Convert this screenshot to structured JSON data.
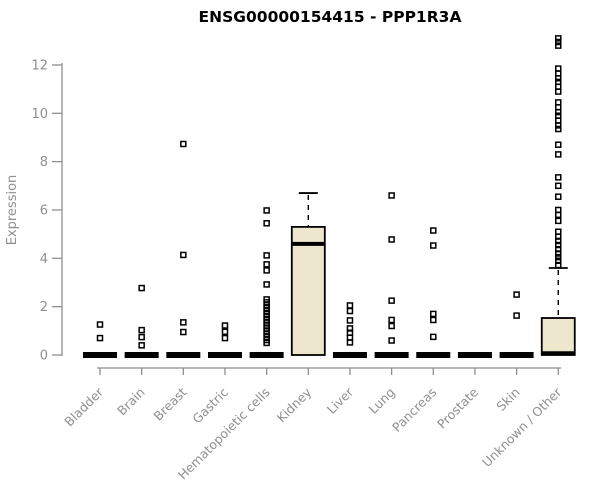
{
  "title": "ENSG00000154415 - PPP1R3A",
  "chart_data": {
    "type": "boxplot",
    "title": "ENSG00000154415 - PPP1R3A",
    "ylabel": "Expression",
    "xlabel": "",
    "ylim": [
      0,
      13.3
    ],
    "yticks": [
      0,
      2,
      4,
      6,
      8,
      10,
      12
    ],
    "grid": false,
    "legend": "none",
    "categories": [
      "Bladder",
      "Brain",
      "Breast",
      "Gastric",
      "Hematopoietic cells",
      "Kidney",
      "Liver",
      "Lung",
      "Pancreas",
      "Prostate",
      "Skin",
      "Unknown / Other"
    ],
    "boxes": [
      {
        "category": "Bladder",
        "q1": 0,
        "median": 0,
        "q3": 0,
        "whisker_low": 0,
        "whisker_high": 0,
        "outliers": [
          1.26,
          0.7
        ]
      },
      {
        "category": "Brain",
        "q1": 0,
        "median": 0,
        "q3": 0,
        "whisker_low": 0,
        "whisker_high": 0,
        "outliers": [
          2.77,
          1.03,
          0.74,
          0.4
        ]
      },
      {
        "category": "Breast",
        "q1": 0,
        "median": 0,
        "q3": 0,
        "whisker_low": 0,
        "whisker_high": 0,
        "outliers": [
          8.73,
          4.14,
          1.35,
          0.95
        ]
      },
      {
        "category": "Gastric",
        "q1": 0,
        "median": 0,
        "q3": 0,
        "whisker_low": 0,
        "whisker_high": 0,
        "outliers": [
          1.22,
          0.96,
          0.7
        ]
      },
      {
        "category": "Hematopoietic cells",
        "q1": 0,
        "median": 0,
        "q3": 0,
        "whisker_low": 0,
        "whisker_high": 0,
        "outliers": [
          5.98,
          5.45,
          4.12,
          3.75,
          3.5,
          2.92,
          2.3,
          2.18,
          2.06,
          1.94,
          1.82,
          1.7,
          1.58,
          1.46,
          1.34,
          1.22,
          1.1,
          0.98,
          0.86,
          0.74,
          0.62,
          0.5
        ]
      },
      {
        "category": "Kidney",
        "q1": 0,
        "median": 4.6,
        "q3": 5.3,
        "whisker_low": 0,
        "whisker_high": 6.7,
        "outliers": []
      },
      {
        "category": "Liver",
        "q1": 0,
        "median": 0,
        "q3": 0,
        "whisker_low": 0,
        "whisker_high": 0,
        "outliers": [
          2.05,
          1.82,
          1.43,
          1.1,
          0.92,
          0.72,
          0.52
        ]
      },
      {
        "category": "Lung",
        "q1": 0,
        "median": 0,
        "q3": 0,
        "whisker_low": 0,
        "whisker_high": 0,
        "outliers": [
          6.6,
          4.78,
          2.25,
          1.45,
          1.2,
          0.6
        ]
      },
      {
        "category": "Pancreas",
        "q1": 0,
        "median": 0,
        "q3": 0,
        "whisker_low": 0,
        "whisker_high": 0,
        "outliers": [
          5.15,
          4.53,
          1.7,
          1.45,
          0.75
        ]
      },
      {
        "category": "Prostate",
        "q1": 0,
        "median": 0,
        "q3": 0,
        "whisker_low": 0,
        "whisker_high": 0,
        "outliers": []
      },
      {
        "category": "Skin",
        "q1": 0,
        "median": 0,
        "q3": 0,
        "whisker_low": 0,
        "whisker_high": 0,
        "outliers": [
          2.5,
          1.63
        ]
      },
      {
        "category": "Unknown / Other",
        "q1": 0,
        "median": 0.07,
        "q3": 1.53,
        "whisker_low": 0,
        "whisker_high": 3.6,
        "outliers": [
          13.1,
          12.95,
          12.8,
          11.85,
          11.65,
          11.45,
          11.3,
          11.1,
          10.9,
          10.45,
          10.25,
          10.05,
          9.9,
          9.7,
          9.5,
          9.35,
          8.7,
          8.3,
          7.35,
          7.0,
          6.55,
          6.0,
          5.8,
          5.55,
          5.1,
          4.9,
          4.72,
          4.55,
          4.38,
          4.2,
          4.05,
          3.9,
          3.72
        ]
      }
    ],
    "colors": {
      "background": "#ffffff",
      "box_fill": "#EDE7CE",
      "box_border": "#000000",
      "median": "#000000",
      "outlier": "#000000",
      "whisker": "#000000",
      "axis": "#8f8f8f",
      "tick_text": "#8f8f8f",
      "title_text": "#000000"
    }
  }
}
